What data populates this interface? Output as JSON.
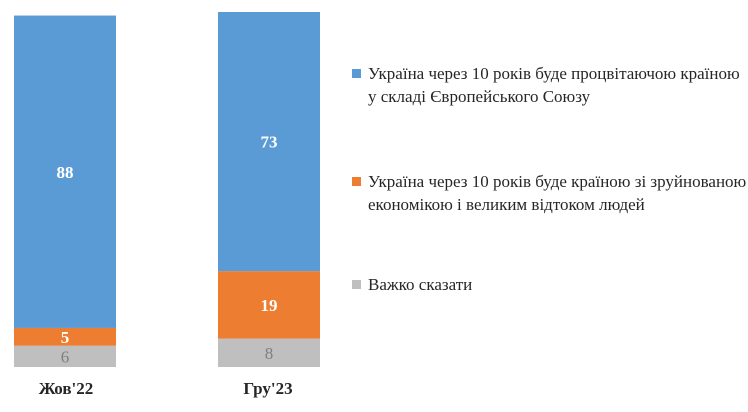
{
  "chart_data": {
    "type": "bar",
    "stacked": true,
    "categories": [
      "Жов'22",
      "Гру'23"
    ],
    "series": [
      {
        "name": "Важко сказати",
        "values": [
          6,
          8
        ],
        "color": "#bfbfbf",
        "label_color": "#7f7f7f",
        "label_bold": false
      },
      {
        "name": "Україна через 10 років буде країною зі зруйнованою економікою і великим відтоком людей",
        "values": [
          5,
          19
        ],
        "color": "#ed7d31",
        "label_color": "#ffffff",
        "label_bold": true
      },
      {
        "name": "Україна через 10 років буде процвітаючою країною у складі Європейського Союзу",
        "values": [
          88,
          73
        ],
        "color": "#5b9bd5",
        "label_color": "#ffffff",
        "label_bold": true
      }
    ],
    "legend_order": [
      2,
      1,
      0
    ],
    "ylim": [
      0,
      100
    ],
    "grid": false,
    "legend_position": "right",
    "title": "",
    "xlabel": "",
    "ylabel": ""
  }
}
